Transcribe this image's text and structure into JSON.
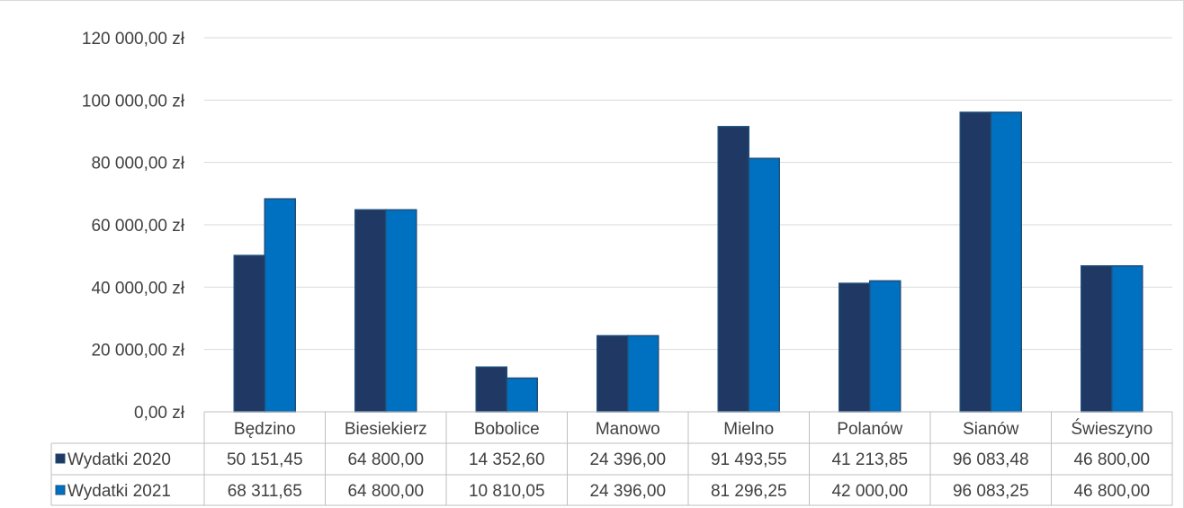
{
  "chart_data": {
    "type": "bar",
    "categories": [
      "Będzino",
      "Biesiekierz",
      "Bobolice",
      "Manowo",
      "Mielno",
      "Polanów",
      "Sianów",
      "Świeszyno"
    ],
    "series": [
      {
        "name": "Wydatki 2020",
        "color": "#1f3864",
        "values": [
          50151.45,
          64800.0,
          14352.6,
          24396.0,
          91493.55,
          41213.85,
          96083.48,
          46800.0
        ],
        "labels": [
          "50 151,45",
          "64 800,00",
          "14 352,60",
          "24 396,00",
          "91 493,55",
          "41 213,85",
          "96 083,48",
          "46 800,00"
        ]
      },
      {
        "name": "Wydatki 2021",
        "color": "#0070c0",
        "values": [
          68311.65,
          64800.0,
          10810.05,
          24396.0,
          81296.25,
          42000.0,
          96083.25,
          46800.0
        ],
        "labels": [
          "68 311,65",
          "64 800,00",
          "10 810,05",
          "24 396,00",
          "81 296,25",
          "42 000,00",
          "96 083,25",
          "46 800,00"
        ]
      }
    ],
    "y_ticks": [
      {
        "value": 0,
        "label": "0,00 zł"
      },
      {
        "value": 20000,
        "label": "20 000,00 zł"
      },
      {
        "value": 40000,
        "label": "40 000,00 zł"
      },
      {
        "value": 60000,
        "label": "60 000,00 zł"
      },
      {
        "value": 80000,
        "label": "80 000,00 zł"
      },
      {
        "value": 100000,
        "label": "100 000,00 zł"
      },
      {
        "value": 120000,
        "label": "120 000,00 zł"
      }
    ],
    "ylim": [
      0,
      120000
    ],
    "grid": true,
    "legend_placement": "data-table"
  }
}
